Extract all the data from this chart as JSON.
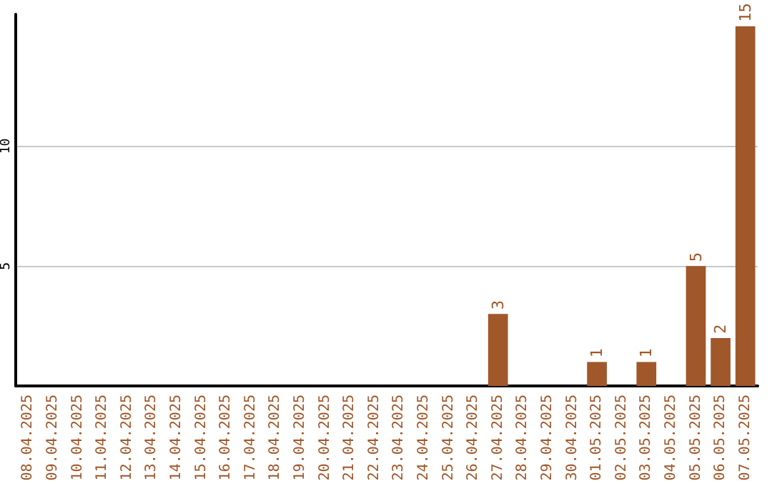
{
  "chart_data": {
    "type": "bar",
    "categories": [
      "08.04.2025",
      "09.04.2025",
      "10.04.2025",
      "11.04.2025",
      "12.04.2025",
      "13.04.2025",
      "14.04.2025",
      "15.04.2025",
      "16.04.2025",
      "17.04.2025",
      "18.04.2025",
      "19.04.2025",
      "20.04.2025",
      "21.04.2025",
      "22.04.2025",
      "23.04.2025",
      "24.04.2025",
      "25.04.2025",
      "26.04.2025",
      "27.04.2025",
      "28.04.2025",
      "29.04.2025",
      "30.04.2025",
      "01.05.2025",
      "02.05.2025",
      "03.05.2025",
      "04.05.2025",
      "05.05.2025",
      "06.05.2025",
      "07.05.2025"
    ],
    "values": [
      0,
      0,
      0,
      0,
      0,
      0,
      0,
      0,
      0,
      0,
      0,
      0,
      0,
      0,
      0,
      0,
      0,
      0,
      0,
      3,
      0,
      0,
      0,
      1,
      0,
      1,
      0,
      5,
      2,
      15
    ],
    "value_labels": [
      null,
      null,
      null,
      null,
      null,
      null,
      null,
      null,
      null,
      null,
      null,
      null,
      null,
      null,
      null,
      null,
      null,
      null,
      null,
      "3",
      null,
      null,
      null,
      "1",
      null,
      "1",
      null,
      "5",
      "2",
      "15"
    ],
    "color": "#a0572a",
    "ylim": [
      0,
      15.5
    ],
    "yticks": [
      5,
      10
    ],
    "grid": "y"
  }
}
